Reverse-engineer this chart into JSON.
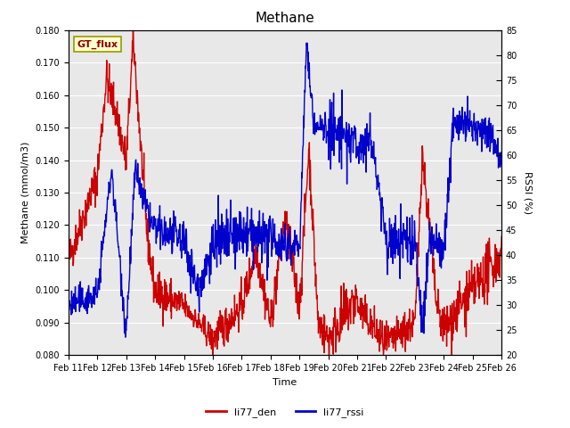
{
  "title": "Methane",
  "xlabel": "Time",
  "ylabel_left": "Methane (mmol/m3)",
  "ylabel_right": "RSSI (%)",
  "ylim_left": [
    0.08,
    0.18
  ],
  "ylim_right": [
    20,
    85
  ],
  "yticks_left": [
    0.08,
    0.09,
    0.1,
    0.11,
    0.12,
    0.13,
    0.14,
    0.15,
    0.16,
    0.17,
    0.18
  ],
  "yticks_right": [
    20,
    25,
    30,
    35,
    40,
    45,
    50,
    55,
    60,
    65,
    70,
    75,
    80,
    85
  ],
  "xtick_labels": [
    "Feb 11",
    "Feb 12",
    "Feb 13",
    "Feb 14",
    "Feb 15",
    "Feb 16",
    "Feb 17",
    "Feb 18",
    "Feb 19",
    "Feb 20",
    "Feb 21",
    "Feb 22",
    "Feb 23",
    "Feb 24",
    "Feb 25",
    "Feb 26"
  ],
  "color_red": "#CC0000",
  "color_blue": "#0000CC",
  "background_color": "#E8E8E8",
  "label_box_text": "GT_flux",
  "label_box_facecolor": "#FFFFCC",
  "label_box_edgecolor": "#999900",
  "legend_labels": [
    "li77_den",
    "li77_rssi"
  ],
  "title_fontsize": 11,
  "axis_fontsize": 8,
  "tick_fontsize": 7,
  "linewidth": 1.0
}
